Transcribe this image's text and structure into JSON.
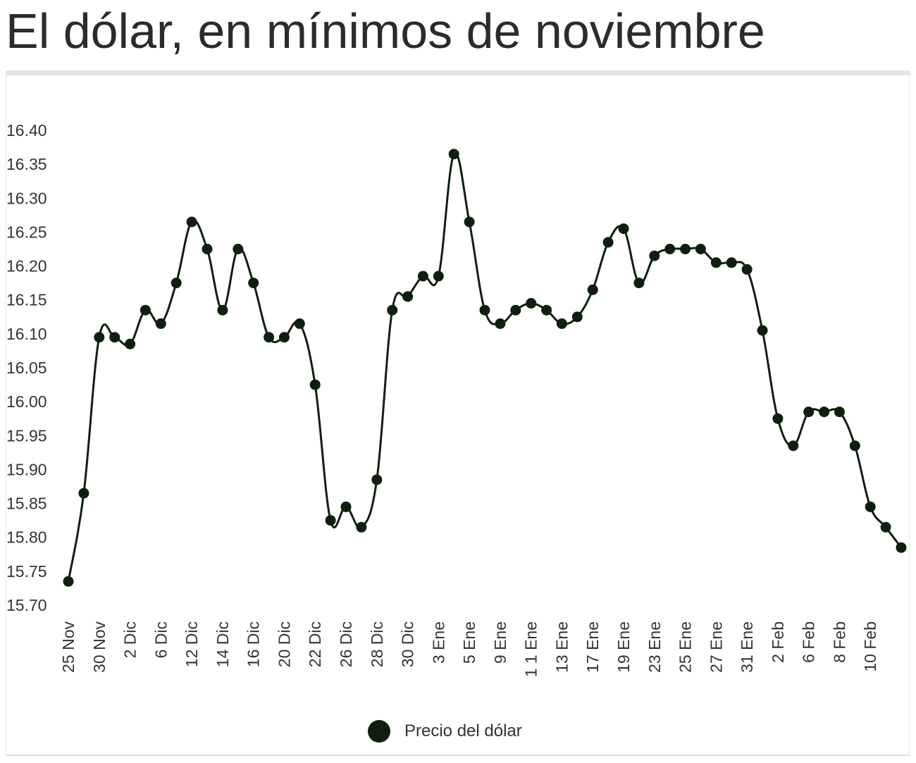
{
  "title": "El dólar, en mínimos de noviembre",
  "chart_data": {
    "type": "line",
    "title": "El dólar, en mínimos de noviembre",
    "xlabel": "",
    "ylabel": "",
    "ylim": [
      15.7,
      16.4
    ],
    "y_ticks": [
      "15.70",
      "15.75",
      "15.80",
      "15.85",
      "15.90",
      "15.95",
      "16.00",
      "16.05",
      "16.10",
      "16.15",
      "16.20",
      "16.25",
      "16.30",
      "16.35",
      "16.40"
    ],
    "x_tick_labels": [
      "25 Nov",
      "30 Nov",
      "2 Dic",
      "6 Dic",
      "12 Dic",
      "14 Dic",
      "16 Dic",
      "20 Dic",
      "22 Dic",
      "26 Dic",
      "28 Dic",
      "30 Dic",
      "3 Ene",
      "5 Ene",
      "9 Ene",
      "1 1 Ene",
      "13 Ene",
      "17 Ene",
      "19 Ene",
      "23 Ene",
      "25 Ene",
      "27 Ene",
      "31 Ene",
      "2 Feb",
      "6 Feb",
      "8 Feb",
      "10 Feb"
    ],
    "grid": false,
    "legend_position": "bottom",
    "series": [
      {
        "name": "Precio del dólar",
        "color": "#0f1f0f",
        "values": [
          15.735,
          15.865,
          16.095,
          16.095,
          16.085,
          16.135,
          16.115,
          16.175,
          16.265,
          16.225,
          16.135,
          16.225,
          16.175,
          16.095,
          16.095,
          16.115,
          16.025,
          15.825,
          15.845,
          15.815,
          15.885,
          16.135,
          16.155,
          16.185,
          16.185,
          16.365,
          16.265,
          16.135,
          16.115,
          16.135,
          16.145,
          16.135,
          16.115,
          16.125,
          16.165,
          16.235,
          16.255,
          16.175,
          16.215,
          16.225,
          16.225,
          16.225,
          16.205,
          16.205,
          16.195,
          16.105,
          15.975,
          15.935,
          15.985,
          15.985,
          15.985,
          15.935,
          15.845,
          15.815,
          15.785
        ]
      }
    ]
  }
}
